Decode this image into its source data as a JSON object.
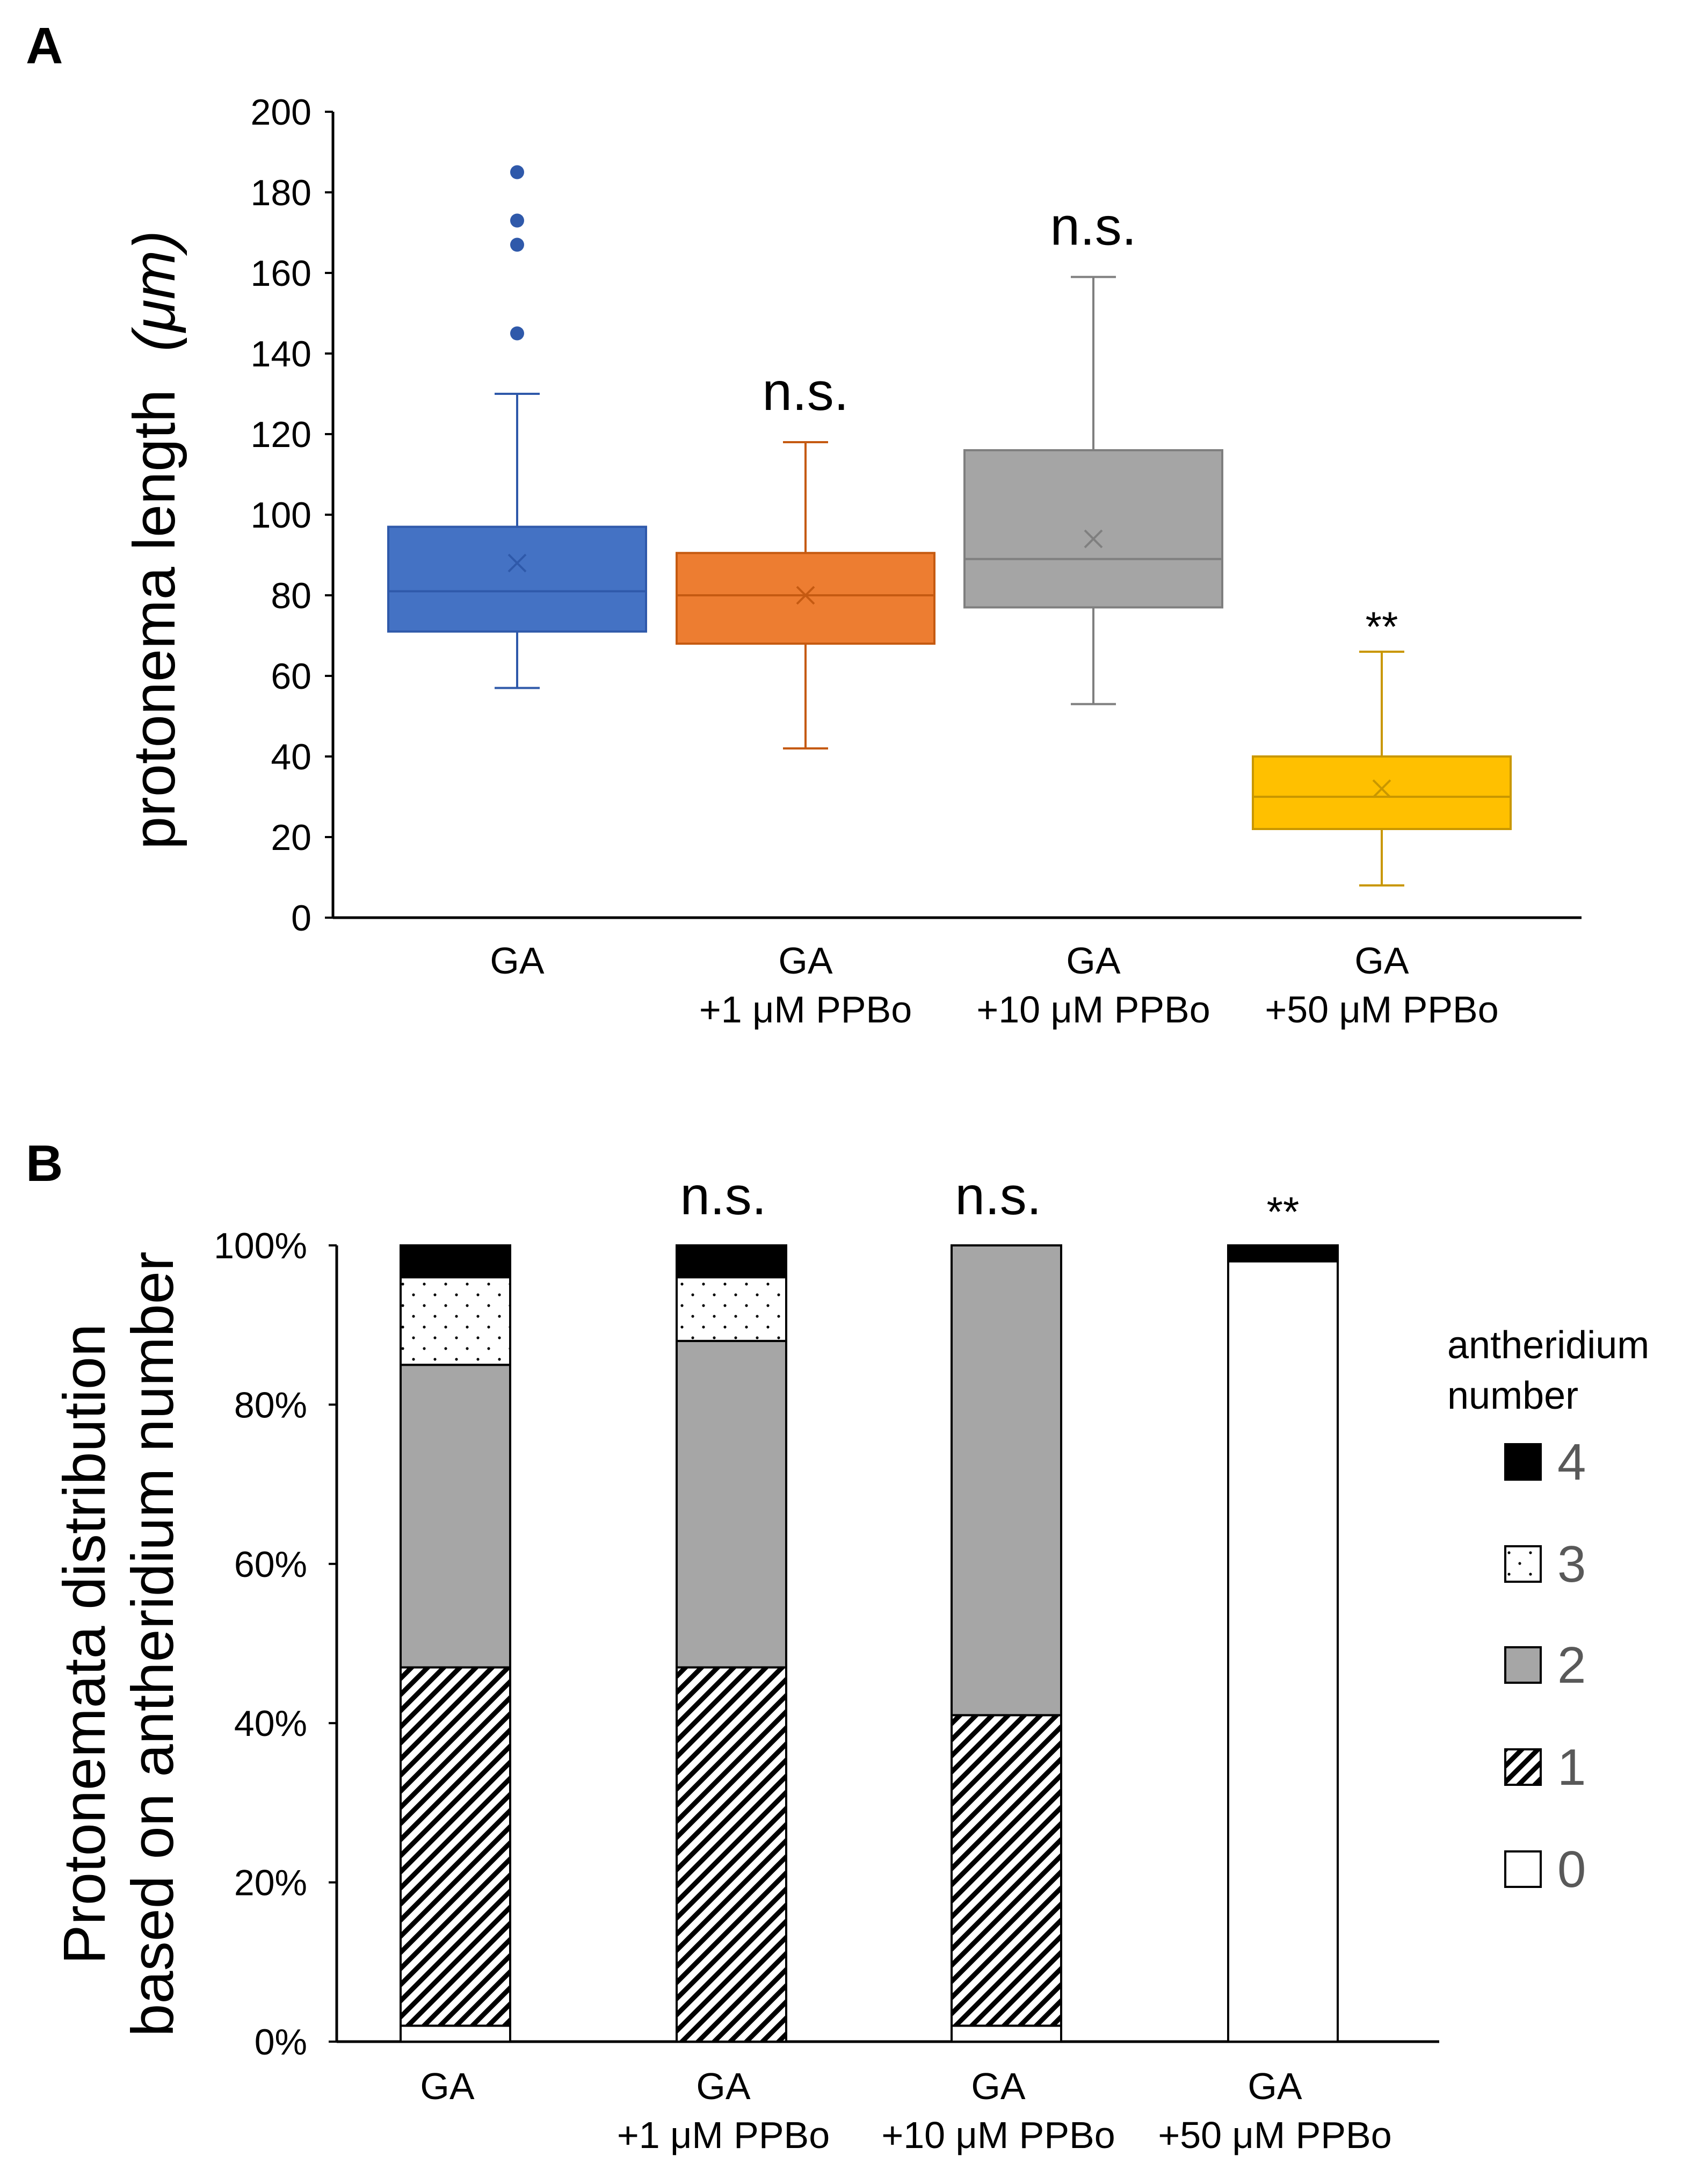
{
  "chart_data": [
    {
      "panel_label": "A",
      "type": "box",
      "ylabel": "protonema length",
      "ylabel_unit": "(μm)",
      "ylim": [
        0,
        200
      ],
      "yticks": [
        0,
        20,
        40,
        60,
        80,
        100,
        120,
        140,
        160,
        180,
        200
      ],
      "groups": [
        {
          "line1": "GA",
          "line2": "",
          "min": 57,
          "q1": 71,
          "median": 81,
          "q3": 97,
          "max": 130,
          "mean": 88,
          "outliers": [
            145,
            167,
            173,
            185
          ],
          "color": "#4472C4",
          "line_color": "#2F59AA",
          "significance": ""
        },
        {
          "line1": "GA",
          "line2": "+1 μM PPBo",
          "min": 42,
          "q1": 68,
          "median": 80,
          "q3": 90.5,
          "max": 118,
          "mean": 80,
          "outliers": [],
          "color": "#ED7D31",
          "line_color": "#C55A11",
          "significance": "n.s."
        },
        {
          "line1": "GA",
          "line2": "+10 μM PPBo",
          "min": 53,
          "q1": 77,
          "median": 89,
          "q3": 116,
          "max": 159,
          "mean": 94,
          "outliers": [],
          "color": "#A5A5A5",
          "line_color": "#7F7F7F",
          "significance": "n.s."
        },
        {
          "line1": "GA",
          "line2": "+50 μM PPBo",
          "min": 8,
          "q1": 22,
          "median": 30,
          "q3": 40,
          "max": 66,
          "mean": 32,
          "outliers": [],
          "color": "#FFC000",
          "line_color": "#C99700",
          "significance": "**"
        }
      ]
    },
    {
      "panel_label": "B",
      "type": "stacked_bar",
      "ylabel_line1": "Protonemata distribution",
      "ylabel_line2": "based on antheridium number",
      "ylim": [
        0,
        100
      ],
      "yticks": [
        "0%",
        "20%",
        "40%",
        "60%",
        "80%",
        "100%"
      ],
      "categories": [
        {
          "line1": "GA",
          "line2": ""
        },
        {
          "line1": "GA",
          "line2": "+1 μM PPBo"
        },
        {
          "line1": "GA",
          "line2": "+10 μM PPBo"
        },
        {
          "line1": "GA",
          "line2": "+50 μM PPBo"
        }
      ],
      "significance": [
        "",
        "n.s.",
        "n.s.",
        "**"
      ],
      "series": [
        {
          "name": "0",
          "pattern": "white",
          "values": [
            2,
            0,
            2,
            98
          ]
        },
        {
          "name": "1",
          "pattern": "hatch",
          "values": [
            45,
            47,
            39,
            0
          ]
        },
        {
          "name": "2",
          "pattern": "gray",
          "values": [
            38,
            41,
            59,
            0
          ]
        },
        {
          "name": "3",
          "pattern": "dots",
          "values": [
            11,
            8,
            0,
            0
          ]
        },
        {
          "name": "4",
          "pattern": "black",
          "values": [
            4,
            4,
            0,
            2
          ]
        }
      ],
      "legend_title_line1": "antheridium",
      "legend_title_line2": "number",
      "legend_order": [
        "4",
        "3",
        "2",
        "1",
        "0"
      ]
    }
  ]
}
